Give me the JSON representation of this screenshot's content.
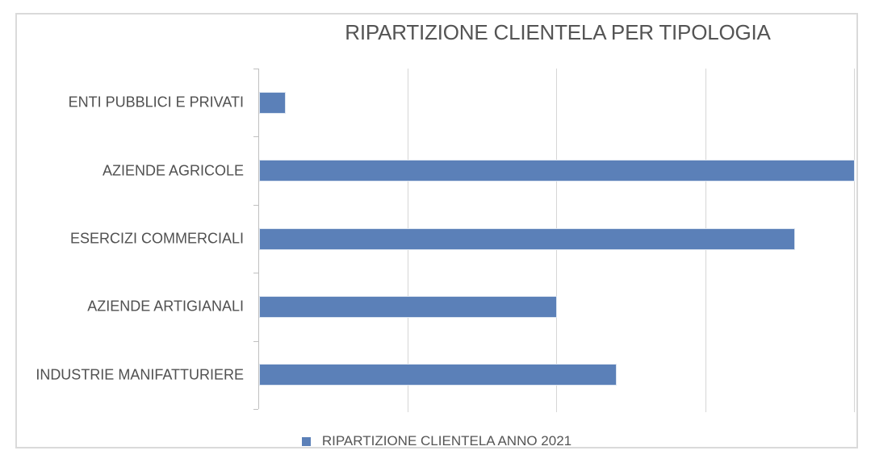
{
  "chart_data": {
    "type": "bar",
    "orientation": "horizontal",
    "title": "RIPARTIZIONE CLIENTELA PER TIPOLOGIA",
    "categories": [
      "ENTI PUBBLICI E PRIVATI",
      "AZIENDE AGRICOLE",
      "ESERCIZI COMMERCIALI",
      "AZIENDE ARTIGIANALI",
      "INDUSTRIE MANIFATTURIERE"
    ],
    "series": [
      {
        "name": "RIPARTIZIONE CLIENTELA ANNO 2021",
        "values": [
          0.18,
          4.0,
          3.6,
          2.0,
          2.4
        ]
      }
    ],
    "value_axis": {
      "min": 0,
      "max": 4.02,
      "gridline_interval": 1,
      "gridline_count": 4,
      "tick_labels_visible": false,
      "note": "values expressed in gridline units; no numeric axis labels are shown in the chart"
    },
    "category_axis": {
      "side": "left",
      "tick_marks": 6
    },
    "grid": "vertical-gridlines-on",
    "legend": {
      "position": "bottom-center",
      "entries": [
        "RIPARTIZIONE CLIENTELA ANNO 2021"
      ]
    },
    "colors": {
      "bar_fill": "#5b80b8",
      "bar_border": "#dbe4f0",
      "gridline": "#d6d6d6",
      "axis_line": "#c0c0c0",
      "frame_border": "#dadada",
      "title_text": "#545454",
      "label_text": "#505050",
      "legend_text": "#555555",
      "background": "#ffffff"
    }
  }
}
